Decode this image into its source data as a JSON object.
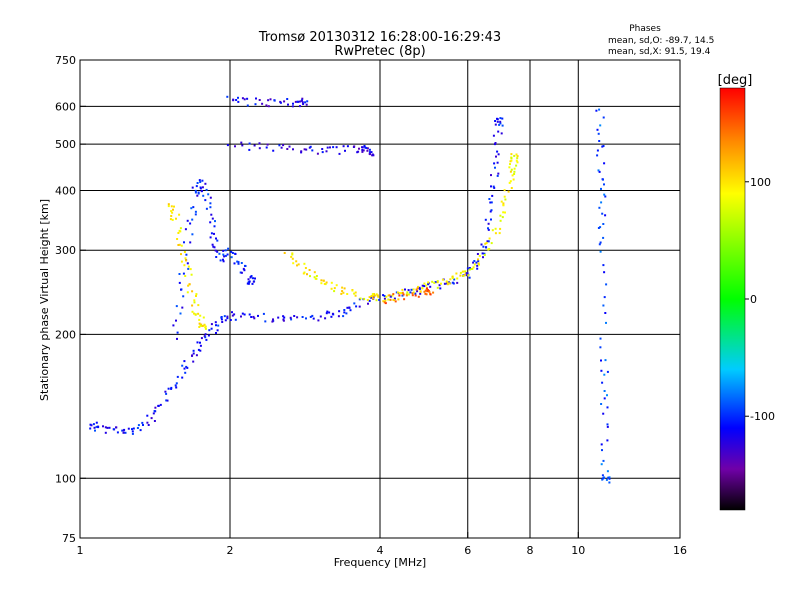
{
  "title": "Tromsø 20130312 16:28:00-16:29:43",
  "subtitle": "RwPretec (8p)",
  "phase_info": {
    "heading": "Phases",
    "line_o": "mean, sd,O: -89.7, 14.5",
    "line_x": "mean, sd,X:  91.5, 19.4"
  },
  "colorbar": {
    "label": "[deg]",
    "range": [
      -180,
      180
    ],
    "tick_labels": [
      {
        "value": 100,
        "text": "100"
      },
      {
        "value": 0,
        "text": "0"
      },
      {
        "value": -100,
        "text": "-100"
      }
    ],
    "stops": [
      {
        "value": -180,
        "color": "#000000"
      },
      {
        "value": -145,
        "color": "#7000a8"
      },
      {
        "value": -110,
        "color": "#0000ff"
      },
      {
        "value": -60,
        "color": "#00ccff"
      },
      {
        "value": 0,
        "color": "#00ff00"
      },
      {
        "value": 90,
        "color": "#ffff00"
      },
      {
        "value": 135,
        "color": "#ff8800"
      },
      {
        "value": 180,
        "color": "#ff0000"
      }
    ]
  },
  "chart_data": {
    "type": "scatter",
    "xlabel": "Frequency [MHz]",
    "ylabel": "Stationary phase Virtual Height [km]",
    "xscale": "log",
    "yscale": "log",
    "xlim": [
      1,
      16
    ],
    "ylim": [
      75,
      750
    ],
    "x_ticks": [
      {
        "value": 1,
        "text": "1"
      },
      {
        "value": 2,
        "text": "2"
      },
      {
        "value": 4,
        "text": "4"
      },
      {
        "value": 6,
        "text": "6"
      },
      {
        "value": 8,
        "text": "8"
      },
      {
        "value": 10,
        "text": "10"
      },
      {
        "value": 16,
        "text": "16"
      }
    ],
    "y_ticks": [
      {
        "value": 75,
        "text": "75"
      },
      {
        "value": 100,
        "text": "100"
      },
      {
        "value": 200,
        "text": "200"
      },
      {
        "value": 300,
        "text": "300"
      },
      {
        "value": 400,
        "text": "400"
      },
      {
        "value": 500,
        "text": "500"
      },
      {
        "value": 600,
        "text": "600"
      },
      {
        "value": 750,
        "text": "750"
      }
    ],
    "grid_x": [
      2,
      4,
      6,
      8,
      10
    ],
    "grid_y": [
      100,
      200,
      300,
      400,
      500,
      600
    ],
    "series": [
      {
        "points": [
          [
            1.05,
            130
          ],
          [
            1.1,
            128
          ],
          [
            1.2,
            126
          ],
          [
            1.3,
            127
          ],
          [
            1.4,
            135
          ],
          [
            1.5,
            150
          ],
          [
            1.6,
            170
          ],
          [
            1.7,
            185
          ],
          [
            1.8,
            200
          ],
          [
            1.9,
            215
          ],
          [
            2.0,
            220
          ],
          [
            2.3,
            218
          ],
          [
            2.6,
            216
          ],
          [
            3.0,
            218
          ],
          [
            3.3,
            222
          ],
          [
            3.6,
            232
          ],
          [
            4.0,
            240
          ],
          [
            4.5,
            246
          ],
          [
            5.0,
            252
          ],
          [
            5.5,
            260
          ],
          [
            6.0,
            268
          ],
          [
            6.3,
            285
          ],
          [
            6.5,
            320
          ],
          [
            6.7,
            390
          ],
          [
            6.8,
            460
          ],
          [
            6.9,
            560
          ]
        ],
        "phase": -110
      },
      {
        "points": [
          [
            1.55,
            200
          ],
          [
            1.6,
            260
          ],
          [
            1.65,
            330
          ],
          [
            1.7,
            400
          ],
          [
            1.75,
            420
          ],
          [
            1.8,
            380
          ],
          [
            1.85,
            320
          ],
          [
            1.9,
            290
          ],
          [
            2.0,
            300
          ],
          [
            2.1,
            280
          ],
          [
            2.2,
            260
          ]
        ],
        "phase": -105
      },
      {
        "points": [
          [
            2.0,
            620
          ],
          [
            2.2,
            615
          ],
          [
            2.5,
            612
          ],
          [
            2.8,
            615
          ]
        ],
        "phase": -115
      },
      {
        "points": [
          [
            2.0,
            500
          ],
          [
            2.4,
            495
          ],
          [
            2.8,
            490
          ],
          [
            3.2,
            488
          ],
          [
            3.6,
            490
          ],
          [
            3.8,
            485
          ]
        ],
        "phase": -120
      },
      {
        "points": [
          [
            2.6,
            300
          ],
          [
            2.8,
            275
          ],
          [
            3.0,
            262
          ],
          [
            3.2,
            252
          ],
          [
            3.5,
            245
          ],
          [
            3.9,
            240
          ]
        ],
        "phase": 95
      },
      {
        "points": [
          [
            4.0,
            237
          ],
          [
            4.4,
            243
          ],
          [
            4.8,
            250
          ],
          [
            5.2,
            256
          ],
          [
            5.6,
            262
          ],
          [
            6.0,
            270
          ],
          [
            6.4,
            290
          ],
          [
            6.8,
            330
          ],
          [
            7.1,
            380
          ],
          [
            7.3,
            430
          ],
          [
            7.4,
            470
          ]
        ],
        "phase": 90
      },
      {
        "points": [
          [
            4.1,
            238
          ],
          [
            4.5,
            243
          ],
          [
            5.0,
            248
          ]
        ],
        "phase": 150
      },
      {
        "points": [
          [
            1.5,
            380
          ],
          [
            1.55,
            350
          ],
          [
            1.6,
            300
          ],
          [
            1.65,
            260
          ],
          [
            1.7,
            230
          ],
          [
            1.75,
            210
          ]
        ],
        "phase": 95
      },
      {
        "points": [
          [
            11.0,
            600
          ],
          [
            11.05,
            470
          ],
          [
            11.1,
            380
          ],
          [
            11.15,
            300
          ],
          [
            11.2,
            180
          ],
          [
            11.25,
            140
          ],
          [
            11.3,
            100
          ]
        ],
        "phase": -95
      }
    ]
  }
}
